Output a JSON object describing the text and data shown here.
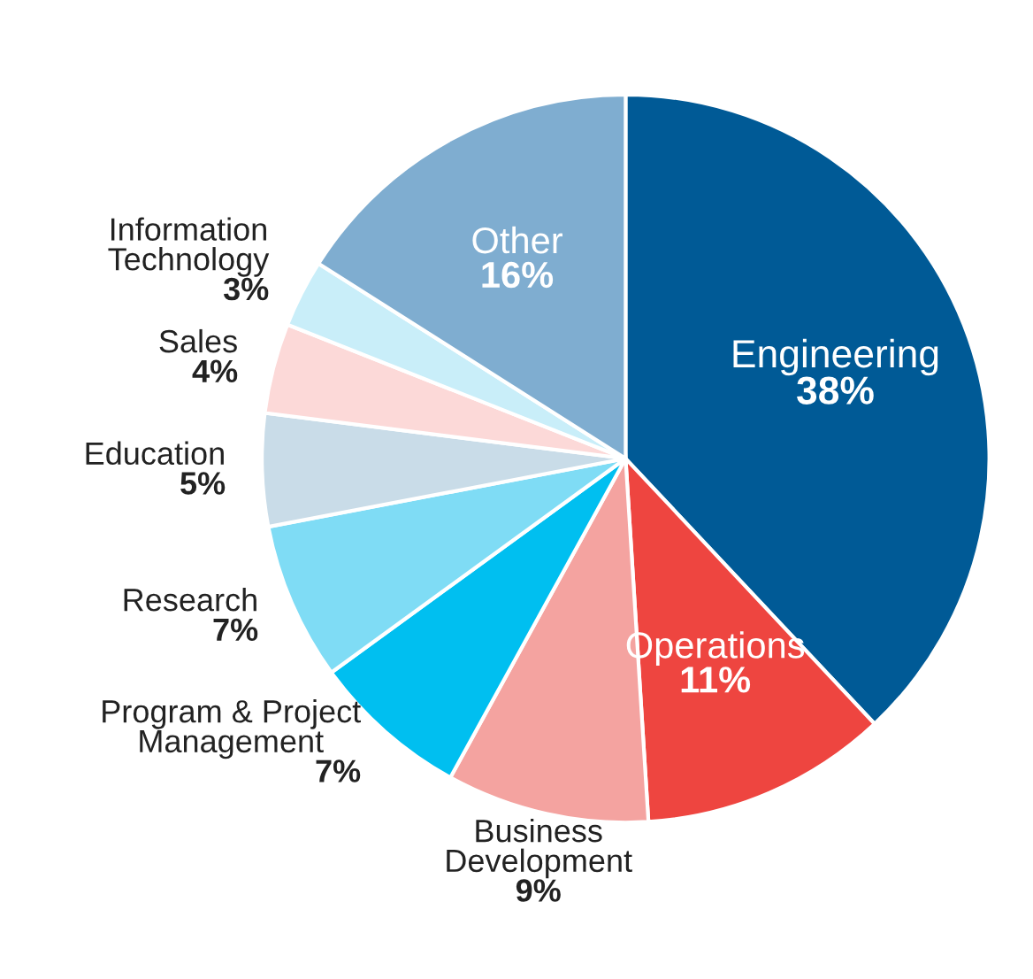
{
  "chart_data": {
    "type": "pie",
    "categories": [
      "Engineering",
      "Operations",
      "Business\nDevelopment",
      "Program & Project\nManagement",
      "Research",
      "Education",
      "Sales",
      "Information\nTechnology",
      "Other"
    ],
    "values": [
      38,
      11,
      9,
      7,
      7,
      5,
      4,
      3,
      16
    ],
    "value_labels": [
      "38%",
      "11%",
      "9%",
      "7%",
      "7%",
      "5%",
      "4%",
      "3%",
      "16%"
    ],
    "colors": [
      "#005a96",
      "#ee4540",
      "#f4a3a0",
      "#00bff0",
      "#7fdcf5",
      "#c9dce8",
      "#fcd9d8",
      "#c9eef9",
      "#7fadd0"
    ],
    "legend": false
  }
}
